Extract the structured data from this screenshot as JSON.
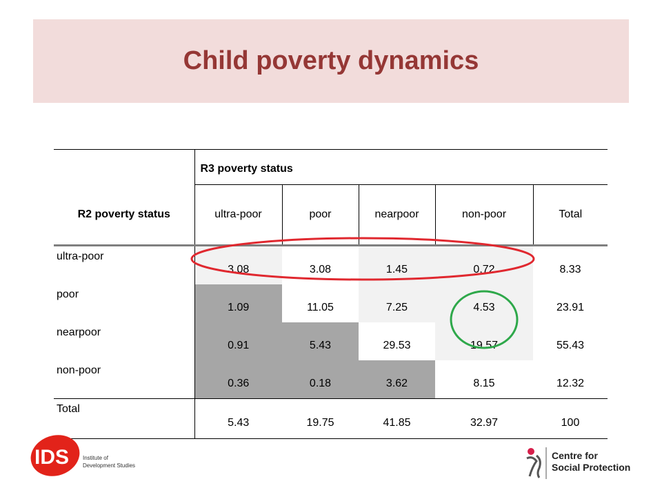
{
  "slide": {
    "title": "Child poverty dynamics"
  },
  "table": {
    "column_group_header": "R3 poverty status",
    "row_header_label": "R2 poverty status",
    "columns": [
      "ultra-poor",
      "poor",
      "nearpoor",
      "non-poor",
      "Total"
    ],
    "rows": [
      {
        "label": "ultra-poor",
        "values": [
          "3.08",
          "3.08",
          "1.45",
          "0.72",
          "8.33"
        ]
      },
      {
        "label": "poor",
        "values": [
          "1.09",
          "11.05",
          "7.25",
          "4.53",
          "23.91"
        ]
      },
      {
        "label": "nearpoor",
        "values": [
          "0.91",
          "5.43",
          "29.53",
          "19.57",
          "55.43"
        ]
      },
      {
        "label": "non-poor",
        "values": [
          "0.36",
          "0.18",
          "3.62",
          "8.15",
          "12.32"
        ]
      },
      {
        "label": "Total",
        "values": [
          "5.43",
          "19.75",
          "41.85",
          "32.97",
          "100"
        ]
      }
    ],
    "annotations": {
      "red_ellipse_color": "#e0282f",
      "green_circle_color": "#2ea84a"
    }
  },
  "logos": {
    "ids": {
      "mark": "IDS",
      "line1": "Institute of",
      "line2": "Development Studies",
      "color": "#e2231a"
    },
    "csp": {
      "line1": "Centre for",
      "line2": "Social Protection",
      "accent": "#d71f4b"
    }
  }
}
